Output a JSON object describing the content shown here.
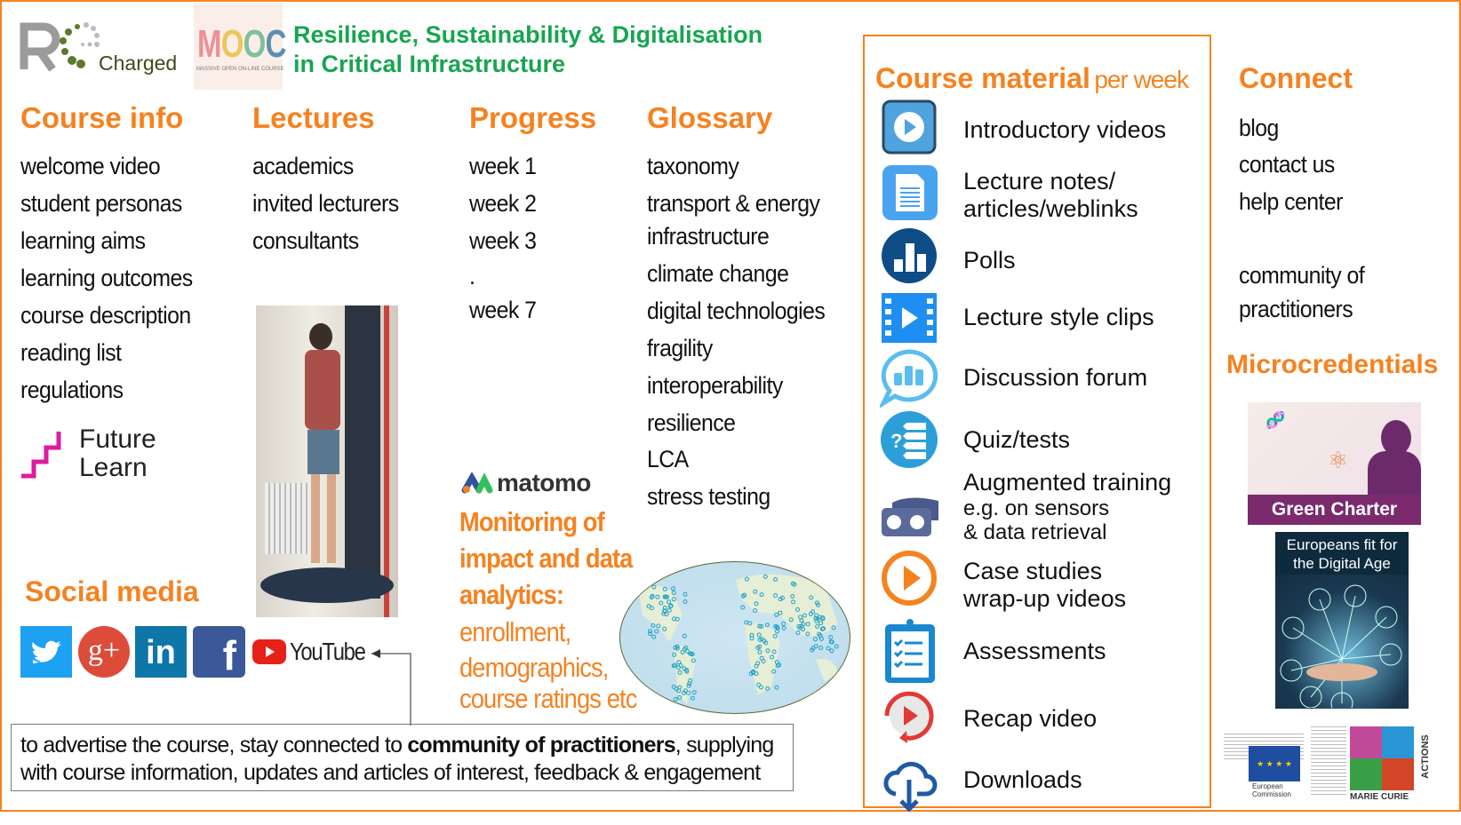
{
  "header": {
    "logo_text": "Charged",
    "mooc_logo": "MOOC",
    "mooc_sub": "MASSIVE OPEN ON-LINE COURSE",
    "title_line1": "Resilience, Sustainability & Digitalisation",
    "title_line2": "in Critical Infrastructure"
  },
  "course_info": {
    "heading": "Course info",
    "items": [
      "welcome video",
      "student personas",
      "learning aims",
      "learning outcomes",
      "course description",
      "reading list",
      "regulations"
    ]
  },
  "lectures": {
    "heading": "Lectures",
    "items": [
      "academics",
      "invited lecturers",
      "consultants"
    ]
  },
  "progress": {
    "heading": "Progress",
    "items": [
      "week 1",
      "week 2",
      "week 3",
      ".",
      "week 7"
    ]
  },
  "glossary": {
    "heading": "Glossary",
    "items": [
      "taxonomy",
      "transport & energy",
      "infrastructure",
      "climate change",
      "digital technologies",
      "fragility",
      "interoperability",
      "resilience",
      "LCA",
      "stress testing"
    ]
  },
  "futurelearn": {
    "line1": "Future",
    "line2": "Learn"
  },
  "social": {
    "heading": "Social media",
    "youtube": "YouTube",
    "icons": [
      "twitter-icon",
      "google-plus-icon",
      "linkedin-icon",
      "facebook-icon",
      "youtube-icon"
    ]
  },
  "analytics": {
    "logo": "matomo",
    "bold_lines": [
      "Monitoring of",
      "impact and data",
      "analytics:"
    ],
    "lines": [
      "enrollment,",
      "demographics,",
      "course ratings etc"
    ]
  },
  "note": {
    "pre": "to advertise the course, stay connected to ",
    "bold": "community of practitioners",
    "post": ", supplying with course information, updates and articles of interest, feedback & engagement"
  },
  "course_material": {
    "heading": "Course material",
    "heading_suffix": "per week",
    "items": [
      {
        "icon": "video-play-icon",
        "lines": [
          "Introductory videos"
        ]
      },
      {
        "icon": "document-icon",
        "lines": [
          "Lecture notes/",
          "articles/weblinks"
        ]
      },
      {
        "icon": "poll-chart-icon",
        "lines": [
          "Polls"
        ]
      },
      {
        "icon": "film-clip-icon",
        "lines": [
          "Lecture style clips"
        ]
      },
      {
        "icon": "chat-bubble-icon",
        "lines": [
          "Discussion forum"
        ]
      },
      {
        "icon": "quiz-icon",
        "lines": [
          "Quiz/tests"
        ]
      },
      {
        "icon": "vr-headset-icon",
        "lines": [
          "Augmented training",
          "e.g. on sensors",
          "& data retrieval"
        ]
      },
      {
        "icon": "play-circle-icon",
        "lines": [
          "Case studies",
          "wrap-up videos"
        ]
      },
      {
        "icon": "clipboard-checklist-icon",
        "lines": [
          "Assessments"
        ]
      },
      {
        "icon": "replay-icon",
        "lines": [
          "Recap video"
        ]
      },
      {
        "icon": "cloud-download-icon",
        "lines": [
          "Downloads"
        ]
      }
    ]
  },
  "connect": {
    "heading": "Connect",
    "items": [
      "blog",
      "contact us",
      "help center",
      "community of",
      "practitioners"
    ]
  },
  "microcredentials": {
    "heading": "Microcredentials",
    "green_charter": "Green Charter",
    "digital_age": "Europeans fit for the Digital Age"
  },
  "footer_logos": {
    "ec_line1": "European",
    "ec_line2": "Commission",
    "mca": "MARIE CURIE",
    "mca2": "ACTIONS"
  },
  "colors": {
    "accent": "#f58220",
    "title_green": "#17a550",
    "green_charter": "#7b2a6e"
  }
}
